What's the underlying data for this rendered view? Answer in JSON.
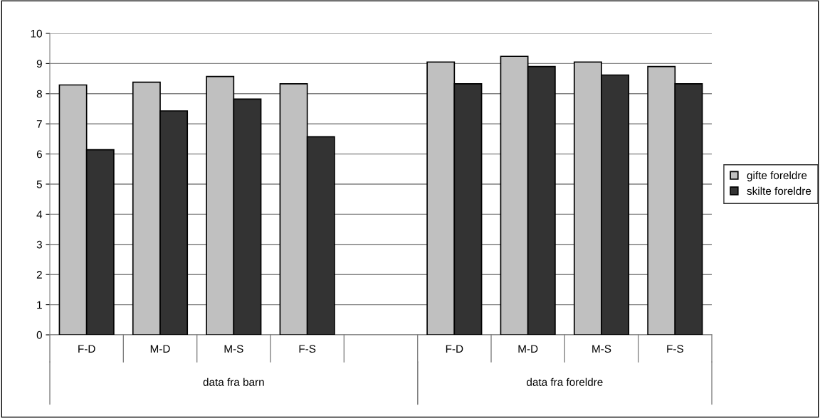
{
  "chart_data": {
    "type": "bar",
    "categories": [
      "F-D",
      "M-D",
      "M-S",
      "F-S",
      null,
      "F-D",
      "M-D",
      "M-S",
      "F-S"
    ],
    "series": [
      {
        "name": "gifte foreldre",
        "color": "#c0c0c0",
        "values": [
          8.29,
          8.38,
          8.57,
          8.33,
          null,
          9.05,
          9.24,
          9.05,
          8.9
        ]
      },
      {
        "name": "skilte foreldre",
        "color": "#333333",
        "values": [
          6.14,
          7.43,
          7.82,
          6.57,
          null,
          8.33,
          8.9,
          8.62,
          8.33
        ]
      }
    ],
    "annotations": [
      "data fra barn",
      "data fra foreldre"
    ],
    "ylim": [
      0,
      10
    ],
    "yticks": [
      0,
      1,
      2,
      3,
      4,
      5,
      6,
      7,
      8,
      9,
      10
    ],
    "grid": "y",
    "legend": "right"
  }
}
